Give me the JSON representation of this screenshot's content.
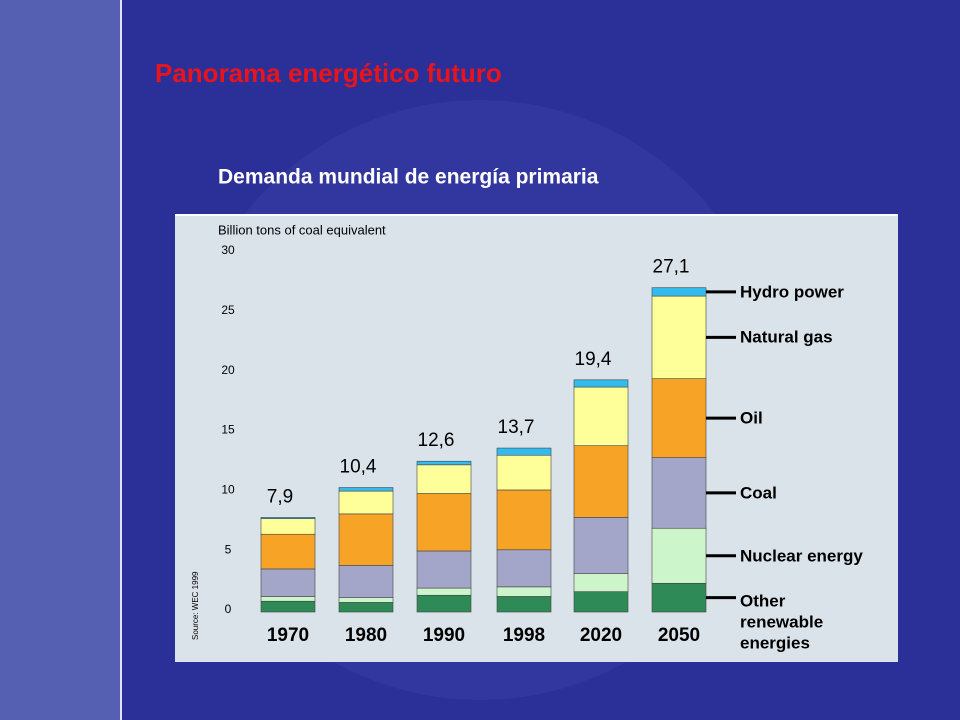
{
  "slide_title": "Panorama energético futuro",
  "chart_data": {
    "type": "stacked_bar",
    "title": "Demanda mundial de energía primaria",
    "y_label": "Billion tons of coal equivalent",
    "source": "Source: WEC 1999",
    "categories": [
      "1970",
      "1980",
      "1990",
      "1998",
      "2020",
      "2050"
    ],
    "series": [
      {
        "name": "Other renewable energies",
        "color": "#2e8b57",
        "values": [
          0.9,
          0.8,
          1.4,
          1.3,
          1.7,
          2.4
        ]
      },
      {
        "name": "Nuclear energy",
        "color": "#ccf5cc",
        "values": [
          0.4,
          0.4,
          0.6,
          0.8,
          1.5,
          4.6
        ]
      },
      {
        "name": "Coal",
        "color": "#a3a6c8",
        "values": [
          2.3,
          2.7,
          3.1,
          3.1,
          4.7,
          5.9
        ]
      },
      {
        "name": "Oil",
        "color": "#f7a326",
        "values": [
          2.9,
          4.3,
          4.8,
          5.0,
          6.0,
          6.6
        ]
      },
      {
        "name": "Natural gas",
        "color": "#ffff99",
        "values": [
          1.3,
          1.9,
          2.4,
          2.9,
          4.9,
          6.9
        ]
      },
      {
        "name": "Hydro power",
        "color": "#33bbee",
        "values": [
          0.1,
          0.3,
          0.3,
          0.6,
          0.6,
          0.7
        ]
      }
    ],
    "totals": [
      7.9,
      10.4,
      12.6,
      13.7,
      19.4,
      27.1
    ],
    "total_labels": [
      "7,9",
      "10,4",
      "12,6",
      "13,7",
      "19,4",
      "27,1"
    ],
    "ylim": [
      0,
      30
    ],
    "yticks": [
      0,
      5,
      10,
      15,
      20,
      25,
      30
    ]
  }
}
